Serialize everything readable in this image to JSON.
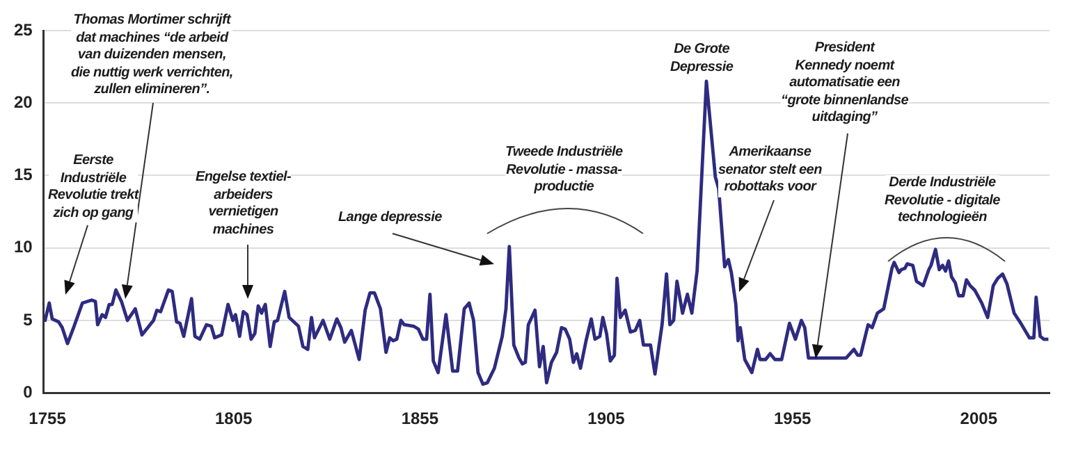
{
  "chart_data": {
    "type": "line",
    "color": "#2e2b80",
    "grid": "y",
    "xlim": [
      1754,
      2024
    ],
    "xticks": [
      1755,
      1805,
      1855,
      1905,
      1955,
      2005
    ],
    "ylim": [
      0,
      25
    ],
    "yticks": [
      0,
      5,
      10,
      15,
      20,
      25
    ],
    "x": [
      1754.3,
      1755.5,
      1756.3,
      1758,
      1759,
      1760.4,
      1761.9,
      1764.4,
      1766.9,
      1767.9,
      1768.5,
      1769.7,
      1770.6,
      1771.6,
      1772.4,
      1773.4,
      1774.9,
      1776.5,
      1778.6,
      1780.4,
      1783.5,
      1784.4,
      1785.4,
      1787.5,
      1788.5,
      1789.7,
      1790.6,
      1791.6,
      1793.7,
      1794.6,
      1795.9,
      1797.7,
      1799,
      1799.9,
      1801.8,
      1803.5,
      1804.8,
      1805.5,
      1806.6,
      1807.6,
      1808.6,
      1809.7,
      1810.7,
      1811.6,
      1812.5,
      1813.5,
      1814.8,
      1815.9,
      1816.8,
      1818.7,
      1819.9,
      1822.4,
      1823.6,
      1824.9,
      1825.9,
      1826.7,
      1829,
      1830.8,
      1832.7,
      1833.8,
      1834.8,
      1836.6,
      1838.7,
      1840.3,
      1841.6,
      1842.8,
      1844.4,
      1845.9,
      1846.9,
      1847.8,
      1848.8,
      1849.9,
      1850.8,
      1853.3,
      1854.6,
      1855.8,
      1856.8,
      1857.7,
      1858.6,
      1859.9,
      1862,
      1863.8,
      1865.1,
      1866.9,
      1868.2,
      1869.4,
      1870.6,
      1871.9,
      1873.1,
      1875,
      1877.1,
      1878.1,
      1879,
      1880.2,
      1881.6,
      1882.5,
      1883.3,
      1884.1,
      1885.9,
      1887.1,
      1888.1,
      1889,
      1890.3,
      1891.7,
      1893,
      1894,
      1895.2,
      1896.2,
      1897.1,
      1898.1,
      1899.6,
      1901,
      1902,
      1903.3,
      1904.1,
      1905.1,
      1906.1,
      1907.2,
      1907.9,
      1908.8,
      1910.1,
      1911.5,
      1912.8,
      1914,
      1915,
      1916.9,
      1918.1,
      1920,
      1921.2,
      1922.1,
      1923.1,
      1924,
      1925.5,
      1926.8,
      1928,
      1929.4,
      1931.9,
      1934.3,
      1935.2,
      1936.8,
      1937.8,
      1938.6,
      1939.8,
      1940.4,
      1941,
      1942.2,
      1944.1,
      1945.6,
      1946.3,
      1947.8,
      1949,
      1950.3,
      1952.1,
      1954.2,
      1955.8,
      1957.4,
      1958.3,
      1959.3,
      1969.4,
      1971.5,
      1972.5,
      1973.3,
      1975.3,
      1976.4,
      1977.8,
      1979.5,
      1981.7,
      1982.3,
      1983.6,
      1984.2,
      1985.2,
      1985.8,
      1987.3,
      1988.3,
      1990.1,
      1991.6,
      1992.2,
      1993.4,
      1994.4,
      1995.3,
      1996.1,
      1996.9,
      1997.7,
      1998.7,
      1999.6,
      2000.8,
      2001.7,
      2002.7,
      2003.9,
      2005.8,
      2007.4,
      2008.9,
      2010.1,
      2011.4,
      2012.6,
      2014.5,
      2016.3,
      2018.6,
      2019.8,
      2020.4,
      2021.5,
      2022.5,
      2023.7
    ],
    "values": [
      4.9,
      6.2,
      5.1,
      4.9,
      4.5,
      3.4,
      4.4,
      6.2,
      6.4,
      6.3,
      4.7,
      5.4,
      5.2,
      6.1,
      6.1,
      7.1,
      6.3,
      5.0,
      5.8,
      4.0,
      5.0,
      5.7,
      5.6,
      7.1,
      7.0,
      4.9,
      4.8,
      3.9,
      6.5,
      3.9,
      3.7,
      4.7,
      4.6,
      3.8,
      4.0,
      6.1,
      5.0,
      5.4,
      3.9,
      5.6,
      5.4,
      3.7,
      4.1,
      6.0,
      5.5,
      6.1,
      3.2,
      4.9,
      5.0,
      7.0,
      5.2,
      4.6,
      3.2,
      3.0,
      5.2,
      3.8,
      5.0,
      3.7,
      5.1,
      4.5,
      3.5,
      4.3,
      2.3,
      5.7,
      6.9,
      6.9,
      5.8,
      2.8,
      3.8,
      3.6,
      3.7,
      5.0,
      4.7,
      4.6,
      4.4,
      3.7,
      3.7,
      6.8,
      2.2,
      1.4,
      5.4,
      1.5,
      1.5,
      5.8,
      6.2,
      5.0,
      1.4,
      0.6,
      0.7,
      1.7,
      3.9,
      5.8,
      10.1,
      3.3,
      2.4,
      2.0,
      2.1,
      4.7,
      5.7,
      1.8,
      3.2,
      0.7,
      2.1,
      2.8,
      4.5,
      4.4,
      3.7,
      2.1,
      2.7,
      1.7,
      3.6,
      5.1,
      3.7,
      3.9,
      5.2,
      4.1,
      2.2,
      2.6,
      7.9,
      5.2,
      5.7,
      4.2,
      4.3,
      5.0,
      3.3,
      3.3,
      1.3,
      4.7,
      8.2,
      4.7,
      5.0,
      7.7,
      5.5,
      6.8,
      5.5,
      8.4,
      21.5,
      14.9,
      14.1,
      8.7,
      9.2,
      8.3,
      6.1,
      3.6,
      4.5,
      2.3,
      1.4,
      3.0,
      2.3,
      2.3,
      2.7,
      2.3,
      2.3,
      4.8,
      3.7,
      5.0,
      4.5,
      2.4,
      2.4,
      3.0,
      2.6,
      2.6,
      4.7,
      4.5,
      5.5,
      5.8,
      8.6,
      9.0,
      8.3,
      8.5,
      8.6,
      8.9,
      8.8,
      7.7,
      7.4,
      8.5,
      8.8,
      9.9,
      8.5,
      8.8,
      8.4,
      9.1,
      8.0,
      7.6,
      6.7,
      6.7,
      7.8,
      7.4,
      7.1,
      6.2,
      5.2,
      7.4,
      7.9,
      8.2,
      7.5,
      5.5,
      4.8,
      3.8,
      3.8,
      6.6,
      3.9,
      3.7,
      3.7
    ],
    "annotations": [
      "Eerste\nIndustriële\nRevolutie trekt\nzich op gang",
      "Thomas Mortimer schrijft\ndat machines “de arbeid\nvan duizenden mensen,\ndie nuttig werk verrichten,\nzullen elimineren”.",
      "Engelse textiel-\narbeiders\nvernietigen\nmachines",
      "Lange depressie",
      "Tweede Industriële\nRevolutie - massa-\nproductie",
      "De Grote\nDepressie",
      "Amerikaanse\nsenator stelt een\nrobottaks voor",
      "President\nKennedy noemt\nautomatisatie een\n“grote binnenlandse\nuitdaging”",
      "Derde Industriële\nRevolutie - digitale\ntechnologieën"
    ]
  }
}
